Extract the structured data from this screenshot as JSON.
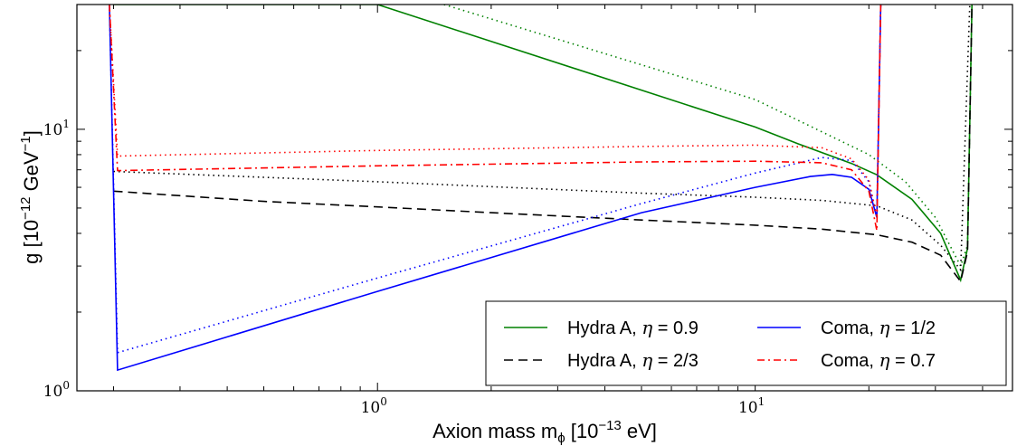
{
  "chart_data": {
    "type": "line",
    "xlabel_main": "Axion mass m",
    "xlabel_sub": "ϕ",
    "xlabel_bracket": " [10",
    "xlabel_exp": "−13",
    "xlabel_unit": " eV]",
    "ylabel_main": "g [10",
    "ylabel_exp": "−12",
    "ylabel_unit": " GeV",
    "ylabel_exp2": "−1",
    "ylabel_close": "]",
    "x_scale": "log",
    "y_scale": "log",
    "xlim": [
      0.16,
      48
    ],
    "ylim": [
      1.0,
      30
    ],
    "x_ticks": [
      {
        "value": 1,
        "base": "10",
        "exp": "0"
      },
      {
        "value": 10,
        "base": "10",
        "exp": "1"
      }
    ],
    "y_ticks": [
      {
        "value": 1,
        "base": "10",
        "exp": "0"
      },
      {
        "value": 10,
        "base": "10",
        "exp": "1"
      }
    ],
    "legend_position": "lower-right",
    "series": [
      {
        "name": "Hydra A, η = 0.9",
        "label_text": "Hydra A, ",
        "label_eta": "η",
        "label_value": " = 0.9",
        "color": "#008000",
        "style": "solid",
        "in_legend": true,
        "points": [
          [
            0.2,
            30
          ],
          [
            0.2,
            30
          ],
          [
            1.0,
            30
          ],
          [
            10,
            10.2
          ],
          [
            13,
            8.8
          ],
          [
            18,
            7.4
          ],
          [
            21,
            6.7
          ],
          [
            26,
            5.4
          ],
          [
            31,
            4.0
          ],
          [
            35,
            2.65
          ],
          [
            36.5,
            3.5
          ],
          [
            37.5,
            30
          ]
        ]
      },
      {
        "name": "Hydra A, η = 0.9 (dotted)",
        "color": "#008000",
        "style": "dotted",
        "in_legend": false,
        "points": [
          [
            1.5,
            30
          ],
          [
            10,
            13.0
          ],
          [
            20,
            8.0
          ],
          [
            25,
            6.3
          ],
          [
            30,
            4.6
          ],
          [
            35,
            3.0
          ],
          [
            36.5,
            3.6
          ],
          [
            37.5,
            30
          ]
        ]
      },
      {
        "name": "Hydra A, η = 2/3",
        "label_text": "Hydra A, ",
        "label_eta": "η",
        "label_value": " = 2/3",
        "color": "#000000",
        "style": "dashed",
        "in_legend": true,
        "points": [
          [
            0.2,
            5.8
          ],
          [
            0.5,
            5.3
          ],
          [
            1,
            5.05
          ],
          [
            2,
            4.8
          ],
          [
            5,
            4.5
          ],
          [
            10,
            4.3
          ],
          [
            15,
            4.15
          ],
          [
            21,
            3.95
          ],
          [
            26,
            3.7
          ],
          [
            31,
            3.3
          ],
          [
            35,
            2.62
          ],
          [
            36.5,
            3.4
          ],
          [
            37.5,
            30
          ]
        ]
      },
      {
        "name": "Hydra A, η = 2/3 (dotted)",
        "color": "#000000",
        "style": "dotted",
        "in_legend": false,
        "points": [
          [
            0.2,
            6.9
          ],
          [
            1,
            6.3
          ],
          [
            5,
            5.7
          ],
          [
            10,
            5.5
          ],
          [
            15,
            5.35
          ],
          [
            21,
            5.1
          ],
          [
            26,
            4.5
          ],
          [
            31,
            3.6
          ],
          [
            35,
            2.9
          ],
          [
            37,
            30
          ]
        ]
      },
      {
        "name": "Coma, η = 1/2",
        "label_text": "Coma, ",
        "label_eta": "η",
        "label_value": " = 1/2",
        "color": "#0000ff",
        "style": "solid",
        "in_legend": true,
        "points": [
          [
            0.195,
            30
          ],
          [
            0.205,
            1.2
          ],
          [
            1,
            2.4
          ],
          [
            5,
            4.8
          ],
          [
            10,
            6.0
          ],
          [
            14,
            6.6
          ],
          [
            16,
            6.72
          ],
          [
            18,
            6.55
          ],
          [
            20,
            5.9
          ],
          [
            21,
            4.6
          ],
          [
            21.5,
            30
          ]
        ]
      },
      {
        "name": "Coma, η = 1/2 (dotted)",
        "color": "#0000ff",
        "style": "dotted",
        "in_legend": false,
        "points": [
          [
            0.195,
            30
          ],
          [
            0.205,
            1.4
          ],
          [
            1,
            2.7
          ],
          [
            5,
            5.2
          ],
          [
            10,
            6.8
          ],
          [
            15,
            7.8
          ],
          [
            18,
            7.6
          ],
          [
            20,
            6.3
          ],
          [
            21,
            4.6
          ],
          [
            21.5,
            30
          ]
        ]
      },
      {
        "name": "Coma, η = 0.7",
        "label_text": "Coma, ",
        "label_eta": "η",
        "label_value": " = 0.7",
        "color": "#ff0000",
        "style": "dashdot",
        "in_legend": true,
        "points": [
          [
            0.195,
            30
          ],
          [
            0.205,
            6.95
          ],
          [
            1,
            7.25
          ],
          [
            5,
            7.5
          ],
          [
            10,
            7.55
          ],
          [
            15,
            7.45
          ],
          [
            18,
            7.0
          ],
          [
            20,
            5.8
          ],
          [
            21,
            4.1
          ],
          [
            21.5,
            30
          ]
        ]
      },
      {
        "name": "Coma, η = 0.7 (dotted)",
        "color": "#ff0000",
        "style": "dotted",
        "in_legend": false,
        "points": [
          [
            0.195,
            30
          ],
          [
            0.205,
            7.9
          ],
          [
            1,
            8.3
          ],
          [
            5,
            8.6
          ],
          [
            10,
            8.7
          ],
          [
            15,
            8.5
          ],
          [
            18,
            7.7
          ],
          [
            20,
            6.4
          ],
          [
            21,
            4.6
          ],
          [
            21.5,
            30
          ]
        ]
      }
    ]
  }
}
